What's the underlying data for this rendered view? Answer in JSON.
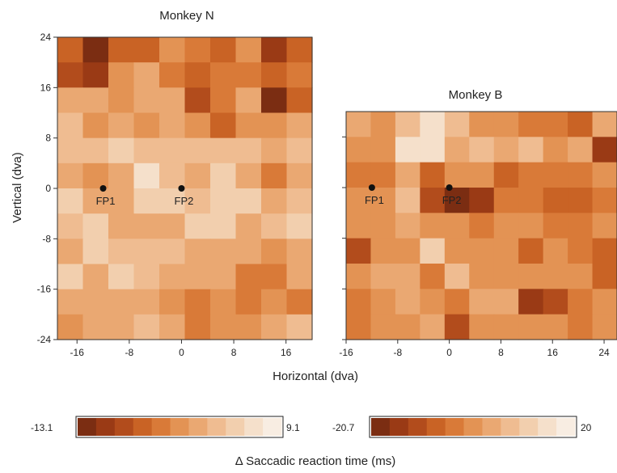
{
  "figure": {
    "xlabel": "Horizontal (dva)",
    "ylabel": "Vertical (dva)",
    "colorbar_title": "Δ Saccadic reaction time (ms)"
  },
  "chart_data": [
    {
      "type": "heatmap",
      "title": "Monkey N",
      "x_range": [
        -19,
        20
      ],
      "y_range": [
        -24,
        24
      ],
      "xticks": [
        -16,
        -8,
        0,
        8,
        16
      ],
      "yticks": [
        -24,
        -16,
        -8,
        0,
        8,
        16,
        24
      ],
      "ncols": 10,
      "nrows": 12,
      "value_range": [
        -13.1,
        9.1
      ],
      "cells": [
        [
          3,
          0,
          3,
          3,
          5,
          4,
          3,
          5,
          1,
          3
        ],
        [
          2,
          1,
          5,
          6,
          4,
          3,
          4,
          4,
          3,
          4
        ],
        [
          6,
          6,
          5,
          6,
          6,
          2,
          4,
          6,
          0,
          3
        ],
        [
          7,
          5,
          6,
          5,
          6,
          5,
          3,
          5,
          5,
          6
        ],
        [
          7,
          7,
          8,
          7,
          7,
          7,
          7,
          7,
          6,
          7
        ],
        [
          6,
          5,
          6,
          9,
          7,
          6,
          8,
          6,
          4,
          6
        ],
        [
          8,
          6,
          6,
          8,
          8,
          7,
          8,
          8,
          6,
          7
        ],
        [
          7,
          8,
          6,
          6,
          6,
          8,
          8,
          6,
          7,
          8
        ],
        [
          6,
          8,
          7,
          7,
          7,
          6,
          6,
          6,
          5,
          6
        ],
        [
          8,
          6,
          8,
          7,
          6,
          6,
          6,
          4,
          4,
          6
        ],
        [
          6,
          6,
          6,
          6,
          5,
          4,
          5,
          4,
          5,
          4
        ],
        [
          5,
          6,
          6,
          7,
          6,
          4,
          5,
          5,
          6,
          7
        ]
      ],
      "markers": [
        {
          "label": "FP1",
          "x": -12,
          "y": 0
        },
        {
          "label": "FP2",
          "x": 0,
          "y": 0
        }
      ]
    },
    {
      "type": "heatmap",
      "title": "Monkey B",
      "x_range": [
        -16,
        26
      ],
      "y_range": [
        -24,
        12
      ],
      "xticks": [
        -16,
        -8,
        0,
        8,
        16,
        24
      ],
      "yticks": [
        -24,
        -16,
        -8,
        0,
        8
      ],
      "ncols": 11,
      "nrows": 9,
      "value_range": [
        -20.7,
        20
      ],
      "cells": [
        [
          6,
          5,
          7,
          9,
          7,
          5,
          5,
          4,
          4,
          3,
          6
        ],
        [
          5,
          5,
          9,
          9,
          6,
          7,
          6,
          7,
          5,
          6,
          1
        ],
        [
          4,
          4,
          6,
          3,
          5,
          5,
          3,
          4,
          4,
          4,
          5
        ],
        [
          5,
          5,
          7,
          2,
          0,
          1,
          4,
          4,
          3,
          3,
          4
        ],
        [
          5,
          5,
          6,
          5,
          5,
          4,
          5,
          5,
          4,
          4,
          5
        ],
        [
          2,
          5,
          5,
          8,
          5,
          5,
          5,
          3,
          5,
          4,
          3
        ],
        [
          5,
          6,
          6,
          4,
          7,
          5,
          5,
          5,
          5,
          5,
          3
        ],
        [
          4,
          5,
          6,
          5,
          4,
          6,
          6,
          1,
          2,
          4,
          5
        ],
        [
          4,
          5,
          5,
          6,
          2,
          5,
          5,
          5,
          5,
          4,
          5
        ]
      ],
      "markers": [
        {
          "label": "FP1",
          "x": -12,
          "y": 0
        },
        {
          "label": "FP2",
          "x": 0,
          "y": 0
        }
      ]
    }
  ],
  "colormap": [
    "#7b2d12",
    "#9a3a15",
    "#b24c1c",
    "#c96325",
    "#d97a38",
    "#e39354",
    "#eaa872",
    "#efbc91",
    "#f2cfae",
    "#f5e0cb",
    "#f8ede2"
  ],
  "colorbars": [
    {
      "min_label": "-13.1",
      "max_label": "9.1"
    },
    {
      "min_label": "-20.7",
      "max_label": "20"
    }
  ]
}
